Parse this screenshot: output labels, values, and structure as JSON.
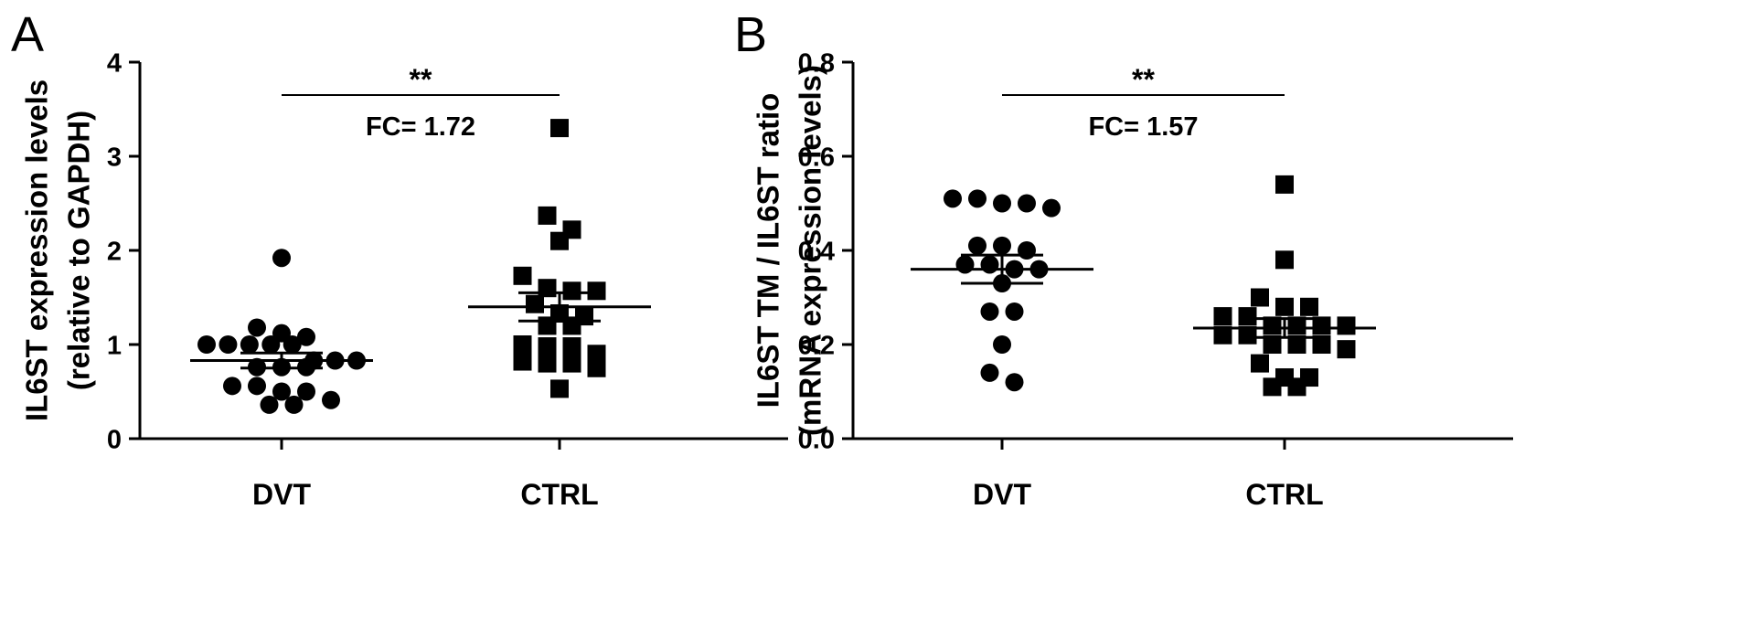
{
  "chart_data": [
    {
      "type": "scatter",
      "panel_label": "A",
      "ylabel_line1": "IL6ST expression levels",
      "ylabel_line2": "(relative to GAPDH)",
      "ylim": [
        0,
        4
      ],
      "yticks": [
        "0",
        "1",
        "2",
        "3",
        "4"
      ],
      "categories": [
        "DVT",
        "CTRL"
      ],
      "significance": "**",
      "fold_change": "FC= 1.72",
      "series": [
        {
          "category": "DVT",
          "marker": "circle",
          "mean": 0.83,
          "sem": 0.08,
          "points": [
            1.92,
            1.18,
            1.0,
            1.0,
            1.0,
            1.0,
            1.0,
            1.12,
            1.08,
            0.83,
            0.83,
            0.83,
            0.76,
            0.76,
            0.76,
            0.56,
            0.56,
            0.5,
            0.5,
            0.41,
            0.36,
            0.36
          ]
        },
        {
          "category": "CTRL",
          "marker": "square",
          "mean": 1.4,
          "sem": 0.15,
          "points": [
            3.3,
            2.37,
            2.22,
            2.1,
            1.73,
            1.6,
            1.57,
            1.57,
            1.43,
            1.33,
            1.3,
            1.2,
            1.2,
            1.0,
            0.98,
            0.98,
            0.9,
            0.82,
            0.8,
            0.8,
            0.75,
            0.53
          ]
        }
      ]
    },
    {
      "type": "scatter",
      "panel_label": "B",
      "ylabel_line1": "IL6ST TM / IL6ST ratio",
      "ylabel_line2": "(mRNA expression levels)",
      "ylim": [
        0,
        0.8
      ],
      "yticks": [
        "0.0",
        "0.2",
        "0.4",
        "0.6",
        "0.8"
      ],
      "categories": [
        "DVT",
        "CTRL"
      ],
      "significance": "**",
      "fold_change": "FC= 1.57",
      "series": [
        {
          "category": "DVT",
          "marker": "circle",
          "mean": 0.36,
          "sem": 0.03,
          "points": [
            0.51,
            0.5,
            0.5,
            0.49,
            0.51,
            0.41,
            0.41,
            0.4,
            0.37,
            0.37,
            0.36,
            0.36,
            0.33,
            0.27,
            0.27,
            0.2,
            0.14,
            0.12
          ]
        },
        {
          "category": "CTRL",
          "marker": "square",
          "mean": 0.235,
          "sem": 0.02,
          "points": [
            0.54,
            0.38,
            0.3,
            0.28,
            0.28,
            0.26,
            0.26,
            0.24,
            0.24,
            0.24,
            0.24,
            0.22,
            0.22,
            0.2,
            0.2,
            0.2,
            0.19,
            0.16,
            0.13,
            0.13,
            0.11,
            0.11
          ]
        }
      ]
    }
  ]
}
